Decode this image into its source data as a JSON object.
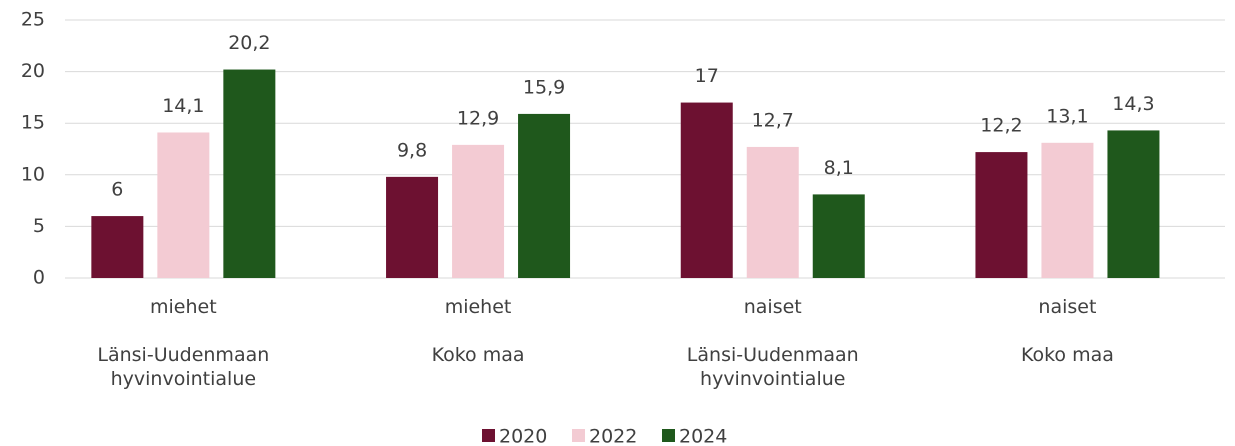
{
  "chart_data": {
    "type": "bar",
    "categories": [
      "miehet",
      "miehet",
      "naiset",
      "naiset"
    ],
    "category_groups": [
      "Länsi-Uudenmaan hyvinvointialue",
      "Koko maa",
      "Länsi-Uudenmaan hyvinvointialue",
      "Koko maa"
    ],
    "series": [
      {
        "name": "2020",
        "color": "#6d1131",
        "values": [
          6,
          9.8,
          17,
          12.2
        ],
        "value_labels": [
          "6",
          "9,8",
          "17",
          "12,2"
        ]
      },
      {
        "name": "2022",
        "color": "#f3cbd3",
        "values": [
          14.1,
          12.9,
          12.7,
          13.1
        ],
        "value_labels": [
          "14,1",
          "12,9",
          "12,7",
          "13,1"
        ]
      },
      {
        "name": "2024",
        "color": "#1f581c",
        "values": [
          20.2,
          15.9,
          8.1,
          14.3
        ],
        "value_labels": [
          "20,2",
          "15,9",
          "8,1",
          "14,3"
        ]
      }
    ],
    "ylim": [
      0,
      25
    ],
    "yticks": [
      0,
      5,
      10,
      15,
      20,
      25
    ],
    "grid": true,
    "legend": "bottom"
  }
}
